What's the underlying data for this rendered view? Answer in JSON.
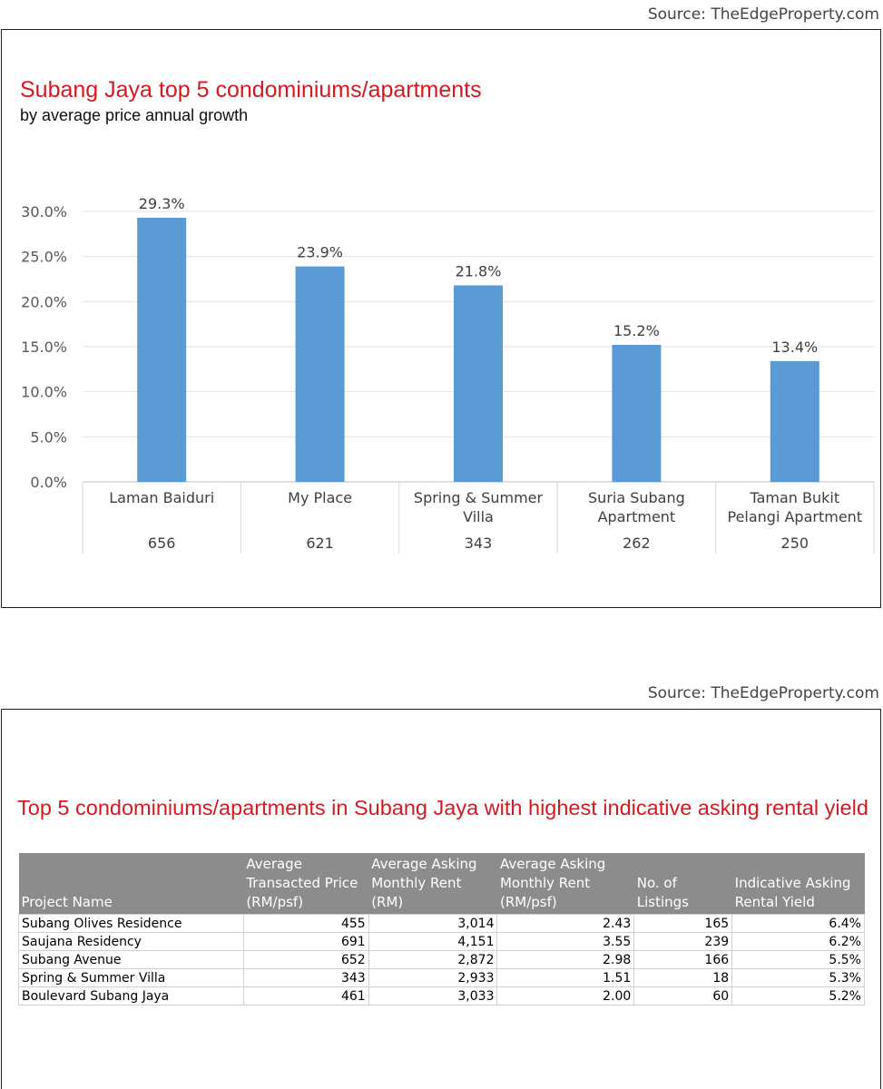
{
  "source_top": "Source: TheEdgeProperty.com",
  "source_bottom": "Source: TheEdgeProperty.com",
  "chart_data": {
    "type": "bar",
    "title": "Subang Jaya top 5 condominiums/apartments",
    "subtitle": "by average price annual growth",
    "categories": [
      "Laman Baiduri",
      "My Place",
      "Spring & Summer Villa",
      "Suria Subang Apartment",
      "Taman Bukit Pelangi Apartment"
    ],
    "category_lines": [
      [
        "Laman Baiduri"
      ],
      [
        "My Place"
      ],
      [
        "Spring & Summer",
        "Villa"
      ],
      [
        "Suria Subang",
        "Apartment"
      ],
      [
        "Taman Bukit",
        "Pelangi Apartment"
      ]
    ],
    "secondary_values": [
      "656",
      "621",
      "343",
      "262",
      "250"
    ],
    "values": [
      29.3,
      23.9,
      21.8,
      15.2,
      13.4
    ],
    "value_labels": [
      "29.3%",
      "23.9%",
      "21.8%",
      "15.2%",
      "13.4%"
    ],
    "ylim": [
      0,
      30
    ],
    "yticks": [
      "0.0%",
      "5.0%",
      "10.0%",
      "15.0%",
      "20.0%",
      "25.0%",
      "30.0%"
    ],
    "xlabel": "",
    "ylabel": "",
    "grid": true,
    "bar_color": "#5b9bd5"
  },
  "table": {
    "title": "Top 5 condominiums/apartments in Subang Jaya with highest indicative asking rental yield",
    "headers": [
      [
        "Project Name"
      ],
      [
        "Average",
        "Transacted Price",
        "(RM/psf)"
      ],
      [
        "Average Asking",
        "Monthly Rent",
        "(RM)"
      ],
      [
        "Average Asking",
        "Monthly Rent",
        "(RM/psf)"
      ],
      [
        "No. of",
        "Listings"
      ],
      [
        "Indicative Asking",
        "Rental Yield"
      ]
    ],
    "rows": [
      [
        "Subang Olives Residence",
        "455",
        "3,014",
        "2.43",
        "165",
        "6.4%"
      ],
      [
        "Saujana Residency",
        "691",
        "4,151",
        "3.55",
        "239",
        "6.2%"
      ],
      [
        "Subang Avenue",
        "652",
        "2,872",
        "2.98",
        "166",
        "5.5%"
      ],
      [
        "Spring & Summer Villa",
        "343",
        "2,933",
        "1.51",
        "18",
        "5.3%"
      ],
      [
        "Boulevard Subang Jaya",
        "461",
        "3,033",
        "2.00",
        "60",
        "5.2%"
      ]
    ]
  }
}
